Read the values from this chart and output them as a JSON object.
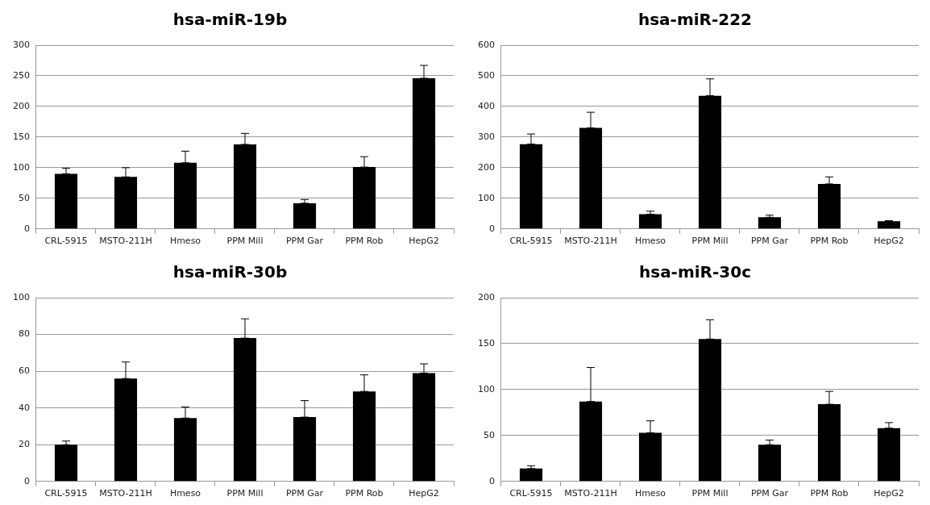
{
  "chart_data": [
    {
      "type": "bar",
      "title": "hsa-miR-19b",
      "categories": [
        "CRL-5915",
        "MSTO-211H",
        "Hmeso",
        "PPM Mill",
        "PPM Gar",
        "PPM Rob",
        "HepG2"
      ],
      "values": [
        90,
        85,
        108,
        138,
        42,
        101,
        246
      ],
      "errors": [
        [
          90,
          99
        ],
        [
          85,
          100
        ],
        [
          108,
          127
        ],
        [
          138,
          156
        ],
        [
          42,
          48
        ],
        [
          101,
          118
        ],
        [
          246,
          267
        ]
      ],
      "color": "#000000",
      "ylim": [
        0,
        300
      ],
      "yticks": [
        0,
        50,
        100,
        150,
        200,
        250,
        300
      ],
      "grid": "y",
      "legend": false
    },
    {
      "type": "bar",
      "title": "hsa-miR-222",
      "categories": [
        "CRL-5915",
        "MSTO-211H",
        "Hmeso",
        "PPM Mill",
        "PPM Gar",
        "PPM Rob",
        "HepG2"
      ],
      "values": [
        277,
        330,
        48,
        435,
        38,
        147,
        25
      ],
      "errors": [
        [
          277,
          310
        ],
        [
          330,
          381
        ],
        [
          48,
          58
        ],
        [
          435,
          490
        ],
        [
          38,
          45
        ],
        [
          147,
          170
        ],
        [
          25,
          27
        ]
      ],
      "color": "#000000",
      "ylim": [
        0,
        600
      ],
      "yticks": [
        0,
        100,
        200,
        300,
        400,
        500,
        600
      ],
      "grid": "y",
      "legend": false
    },
    {
      "type": "bar",
      "title": "hsa-miR-30b",
      "categories": [
        "CRL-5915",
        "MSTO-211H",
        "Hmeso",
        "PPM Mill",
        "PPM Gar",
        "PPM Rob",
        "HepG2"
      ],
      "values": [
        20,
        56,
        34.5,
        78,
        35,
        49,
        59
      ],
      "errors": [
        [
          20,
          22
        ],
        [
          56,
          65
        ],
        [
          34.5,
          40.5
        ],
        [
          78,
          88.5
        ],
        [
          35,
          44
        ],
        [
          49,
          58
        ],
        [
          59,
          64
        ]
      ],
      "color": "#000000",
      "ylim": [
        0,
        100
      ],
      "yticks": [
        0,
        20,
        40,
        60,
        80,
        100
      ],
      "grid": "y",
      "legend": false
    },
    {
      "type": "bar",
      "title": "hsa-miR-30c",
      "categories": [
        "CRL-5915",
        "MSTO-211H",
        "Hmeso",
        "PPM Mill",
        "PPM Gar",
        "PPM Rob",
        "HepG2"
      ],
      "values": [
        14,
        87,
        53,
        155,
        40,
        84,
        58
      ],
      "errors": [
        [
          14,
          17
        ],
        [
          87,
          124
        ],
        [
          53,
          66
        ],
        [
          155,
          176
        ],
        [
          40,
          45
        ],
        [
          84,
          98
        ],
        [
          58,
          64
        ]
      ],
      "color": "#000000",
      "ylim": [
        0,
        200
      ],
      "yticks": [
        0,
        50,
        100,
        150,
        200
      ],
      "grid": "y",
      "legend": false
    }
  ]
}
